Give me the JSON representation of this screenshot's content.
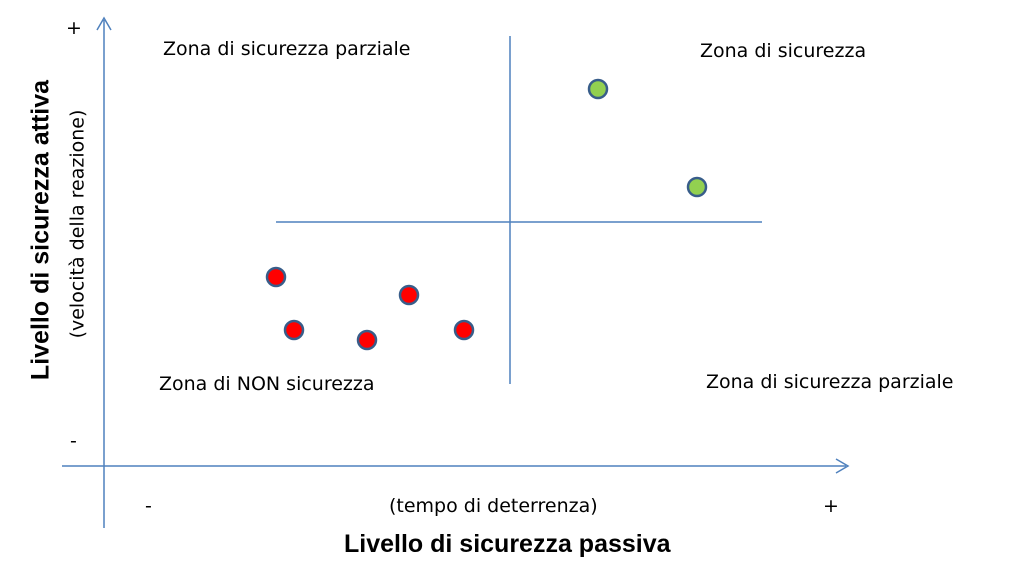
{
  "axes": {
    "x_title": "Livello di sicurezza passiva",
    "x_subtitle": "(tempo di deterrenza)",
    "x_minus": "-",
    "x_plus": "+",
    "y_title": "Livello di sicurezza attiva",
    "y_subtitle": "(velocità della reazione)",
    "y_minus": "-",
    "y_plus": "+"
  },
  "zones": {
    "top_left": "Zona di sicurezza parziale",
    "top_right": "Zona di sicurezza",
    "bottom_left": "Zona di NON sicurezza",
    "bottom_right": "Zona di sicurezza parziale"
  },
  "colors": {
    "axis": "#4f81bd",
    "safe_point": "#92d050",
    "unsafe_point": "#ff0000",
    "point_outline": "#385d8a"
  },
  "points": {
    "safe_count": 2,
    "unsafe_count": 5
  }
}
